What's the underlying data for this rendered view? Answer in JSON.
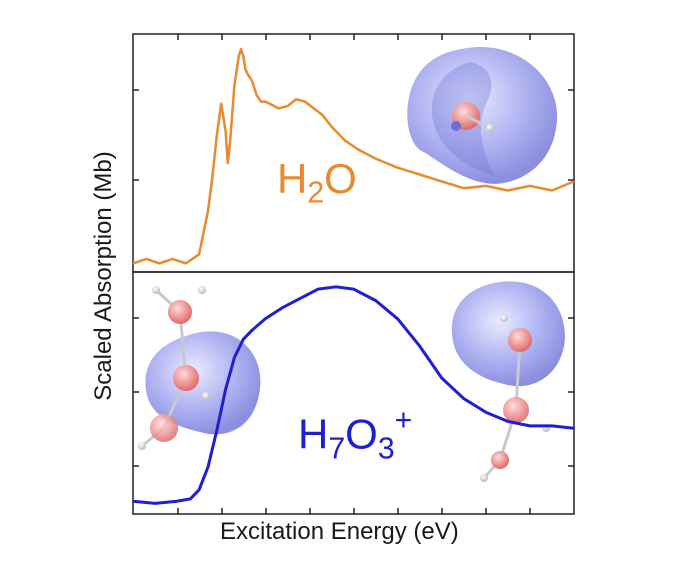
{
  "figure": {
    "xlabel": "Excitation Energy (eV)",
    "ylabel": "Scaled Absorption (Mb)"
  },
  "panels": {
    "top": {
      "species": {
        "main": "H",
        "sub": "2",
        "tail": "O",
        "sup": ""
      },
      "color": "#e88a2e"
    },
    "bottom": {
      "species": {
        "main": "H",
        "sub": "7",
        "tail": "O",
        "sub2": "3",
        "sup": "+"
      },
      "color": "#1f1fd1"
    }
  },
  "chart_data": [
    {
      "type": "line",
      "panel": "top",
      "xlabel": "Excitation Energy (eV)",
      "ylabel": "Scaled Absorption (Mb)",
      "series": [
        {
          "color": "#e88a2e",
          "x": [
            0.0,
            0.03,
            0.06,
            0.09,
            0.12,
            0.15,
            0.17,
            0.18,
            0.19,
            0.2,
            0.21,
            0.215,
            0.22,
            0.23,
            0.24,
            0.245,
            0.25,
            0.255,
            0.26,
            0.27,
            0.28,
            0.29,
            0.3,
            0.31,
            0.33,
            0.35,
            0.37,
            0.39,
            0.41,
            0.43,
            0.45,
            0.48,
            0.51,
            0.55,
            0.6,
            0.65,
            0.7,
            0.75,
            0.8,
            0.85,
            0.9,
            0.95,
            1.0
          ],
          "y": [
            0.02,
            0.04,
            0.02,
            0.04,
            0.02,
            0.06,
            0.25,
            0.4,
            0.58,
            0.72,
            0.6,
            0.46,
            0.55,
            0.8,
            0.93,
            0.96,
            0.93,
            0.87,
            0.85,
            0.82,
            0.76,
            0.73,
            0.73,
            0.72,
            0.7,
            0.71,
            0.74,
            0.73,
            0.7,
            0.67,
            0.62,
            0.56,
            0.52,
            0.48,
            0.44,
            0.41,
            0.38,
            0.35,
            0.36,
            0.34,
            0.36,
            0.34,
            0.38
          ]
        }
      ],
      "xlim": [
        0,
        1
      ],
      "ylim": [
        0,
        1
      ]
    },
    {
      "type": "line",
      "panel": "bottom",
      "xlabel": "Excitation Energy (eV)",
      "ylabel": "Scaled Absorption (Mb)",
      "series": [
        {
          "color": "#1f1fd1",
          "x": [
            0.0,
            0.05,
            0.1,
            0.13,
            0.15,
            0.17,
            0.19,
            0.21,
            0.23,
            0.25,
            0.27,
            0.3,
            0.34,
            0.38,
            0.42,
            0.46,
            0.5,
            0.55,
            0.6,
            0.65,
            0.7,
            0.75,
            0.8,
            0.85,
            0.9,
            0.95,
            1.0
          ],
          "y": [
            0.03,
            0.02,
            0.03,
            0.04,
            0.08,
            0.18,
            0.34,
            0.52,
            0.66,
            0.74,
            0.78,
            0.83,
            0.88,
            0.92,
            0.96,
            0.97,
            0.96,
            0.91,
            0.83,
            0.71,
            0.57,
            0.48,
            0.42,
            0.38,
            0.36,
            0.36,
            0.35
          ]
        }
      ],
      "xlim": [
        0,
        1
      ],
      "ylim": [
        0,
        1
      ]
    }
  ]
}
